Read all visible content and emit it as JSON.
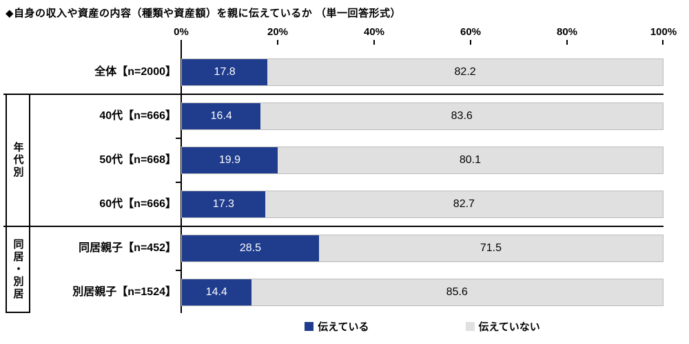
{
  "title": "◆自身の収入や資産の内容（種類や資産額）を親に伝えているか （単一回答形式）",
  "axis": {
    "ticks": [
      "0%",
      "20%",
      "40%",
      "60%",
      "80%",
      "100%"
    ]
  },
  "groups": [
    {
      "label": "年代別"
    },
    {
      "label": "同居・別居"
    }
  ],
  "rows": [
    {
      "label": "全体【n=2000】",
      "yes": 17.8,
      "no": 82.2
    },
    {
      "label": "40代【n=666】",
      "yes": 16.4,
      "no": 83.6
    },
    {
      "label": "50代【n=668】",
      "yes": 19.9,
      "no": 80.1
    },
    {
      "label": "60代【n=666】",
      "yes": 17.3,
      "no": 82.7
    },
    {
      "label": "同居親子【n=452】",
      "yes": 28.5,
      "no": 71.5
    },
    {
      "label": "別居親子【n=1524】",
      "yes": 14.4,
      "no": 85.6
    }
  ],
  "legend": {
    "yes": "伝えている",
    "no": "伝えていない"
  },
  "colors": {
    "yes": "#1f3c8d",
    "no": "#e0e0e0"
  },
  "chart_data": {
    "type": "bar",
    "orientation": "horizontal",
    "stacked": true,
    "title": "◆自身の収入や資産の内容（種類や資産額）を親に伝えているか （単一回答形式）",
    "categories": [
      "全体【n=2000】",
      "40代【n=666】",
      "50代【n=668】",
      "60代【n=666】",
      "同居親子【n=452】",
      "別居親子【n=1524】"
    ],
    "category_groups": [
      {
        "label": "",
        "categories": [
          "全体【n=2000】"
        ]
      },
      {
        "label": "年代別",
        "categories": [
          "40代【n=666】",
          "50代【n=668】",
          "60代【n=666】"
        ]
      },
      {
        "label": "同居・別居",
        "categories": [
          "同居親子【n=452】",
          "別居親子【n=1524】"
        ]
      }
    ],
    "series": [
      {
        "name": "伝えている",
        "color": "#1f3c8d",
        "values": [
          17.8,
          16.4,
          19.9,
          17.3,
          28.5,
          14.4
        ]
      },
      {
        "name": "伝えていない",
        "color": "#e0e0e0",
        "values": [
          82.2,
          83.6,
          80.1,
          82.7,
          71.5,
          85.6
        ]
      }
    ],
    "xlabel": "",
    "ylabel": "",
    "xlim": [
      0,
      100
    ],
    "x_ticks": [
      "0%",
      "20%",
      "40%",
      "60%",
      "80%",
      "100%"
    ],
    "grid": false,
    "data_labels": true,
    "legend_position": "bottom"
  }
}
